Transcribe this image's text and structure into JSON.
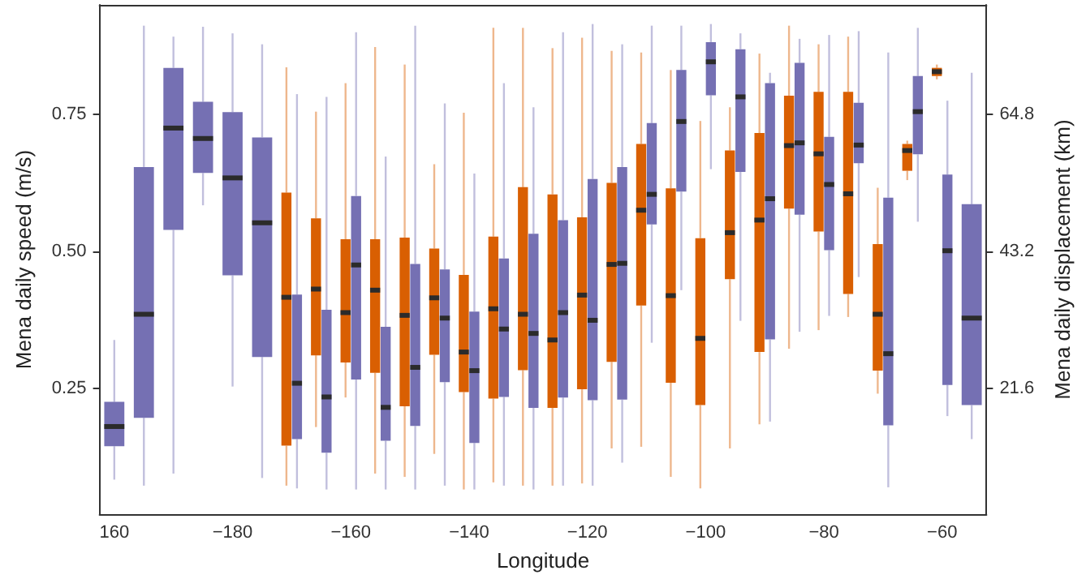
{
  "chart_data": {
    "type": "box",
    "xlabel": "Longitude",
    "ylabel": "Mena daily speed (m/s)",
    "y2label": "Mena daily displacement (km)",
    "categories": [
      "160",
      null,
      null,
      null,
      "−180",
      null,
      null,
      null,
      "−160",
      null,
      null,
      null,
      "−140",
      null,
      null,
      null,
      "−120",
      null,
      null,
      null,
      "−100",
      null,
      null,
      null,
      "−80",
      null,
      null,
      null,
      "−60",
      null
    ],
    "ylim": [
      0.02,
      0.95
    ],
    "yticks": [
      0.25,
      {
        "value": 0.5,
        "label": "0.50"
      },
      0.75
    ],
    "y2lim": [
      1.728,
      82.08
    ],
    "y2ticks": [
      21.6,
      43.2,
      64.8
    ],
    "series": [
      {
        "color": "#d95f02",
        "boxes": [
          null,
          null,
          null,
          null,
          null,
          null,
          {
            "low": 0.072,
            "q1": 0.145,
            "median": 0.416,
            "q3": 0.607,
            "high": 0.836
          },
          {
            "low": 0.179,
            "q1": 0.31,
            "median": 0.431,
            "q3": 0.56,
            "high": 0.755
          },
          {
            "low": 0.233,
            "q1": 0.297,
            "median": 0.388,
            "q3": 0.522,
            "high": 0.807
          },
          {
            "low": 0.094,
            "q1": 0.278,
            "median": 0.429,
            "q3": 0.522,
            "high": 0.873
          },
          {
            "low": 0.088,
            "q1": 0.217,
            "median": 0.383,
            "q3": 0.525,
            "high": 0.841
          },
          {
            "low": 0.13,
            "q1": 0.311,
            "median": 0.415,
            "q3": 0.505,
            "high": 0.659
          },
          {
            "low": 0.065,
            "q1": 0.243,
            "median": 0.316,
            "q3": 0.457,
            "high": 0.753
          },
          {
            "low": 0.078,
            "q1": 0.231,
            "median": 0.395,
            "q3": 0.527,
            "high": 0.908
          },
          {
            "low": 0.072,
            "q1": 0.283,
            "median": 0.385,
            "q3": 0.617,
            "high": 0.908
          },
          {
            "low": 0.072,
            "q1": 0.214,
            "median": 0.338,
            "q3": 0.604,
            "high": 0.871
          },
          {
            "low": 0.076,
            "q1": 0.248,
            "median": 0.42,
            "q3": 0.562,
            "high": 0.89
          },
          {
            "low": 0.14,
            "q1": 0.298,
            "median": 0.476,
            "q3": 0.625,
            "high": 0.866
          },
          {
            "low": 0.143,
            "q1": 0.401,
            "median": 0.575,
            "q3": 0.696,
            "high": 0.863
          },
          {
            "low": 0.088,
            "q1": 0.26,
            "median": 0.419,
            "q3": 0.615,
            "high": 0.831
          },
          {
            "low": 0.067,
            "q1": 0.219,
            "median": 0.341,
            "q3": 0.524,
            "high": 0.738
          },
          {
            "low": 0.14,
            "q1": 0.449,
            "median": 0.534,
            "q3": 0.684,
            "high": 0.763
          },
          {
            "low": 0.184,
            "q1": 0.316,
            "median": 0.557,
            "q3": 0.716,
            "high": 0.861
          },
          {
            "low": 0.322,
            "q1": 0.578,
            "median": 0.693,
            "q3": 0.784,
            "high": 0.912
          },
          {
            "low": 0.356,
            "q1": 0.536,
            "median": 0.678,
            "q3": 0.791,
            "high": 0.878
          },
          {
            "low": 0.38,
            "q1": 0.422,
            "median": 0.605,
            "q3": 0.791,
            "high": 0.892
          },
          {
            "low": 0.24,
            "q1": 0.282,
            "median": 0.385,
            "q3": 0.513,
            "high": 0.616
          },
          {
            "low": 0.63,
            "q1": 0.647,
            "median": 0.684,
            "q3": 0.696,
            "high": 0.702
          },
          {
            "low": 0.814,
            "q1": 0.82,
            "median": 0.828,
            "q3": 0.835,
            "high": 0.841
          },
          null
        ]
      },
      {
        "color": "#7570b3",
        "boxes": [
          {
            "low": 0.083,
            "q1": 0.144,
            "median": 0.18,
            "q3": 0.225,
            "high": 0.338
          },
          {
            "low": 0.072,
            "q1": 0.196,
            "median": 0.385,
            "q3": 0.654,
            "high": 0.912
          },
          {
            "low": 0.094,
            "q1": 0.539,
            "median": 0.725,
            "q3": 0.835,
            "high": 0.892
          },
          {
            "low": 0.584,
            "q1": 0.643,
            "median": 0.706,
            "q3": 0.773,
            "high": 0.91
          },
          {
            "low": 0.253,
            "q1": 0.456,
            "median": 0.634,
            "q3": 0.754,
            "high": 0.898
          },
          {
            "low": 0.086,
            "q1": 0.307,
            "median": 0.552,
            "q3": 0.708,
            "high": 0.878
          },
          {
            "low": 0.067,
            "q1": 0.157,
            "median": 0.259,
            "q3": 0.421,
            "high": 0.787
          },
          {
            "low": 0.065,
            "q1": 0.132,
            "median": 0.234,
            "q3": 0.393,
            "high": 0.782
          },
          {
            "low": 0.065,
            "q1": 0.266,
            "median": 0.475,
            "q3": 0.601,
            "high": 0.9
          },
          {
            "low": 0.065,
            "q1": 0.154,
            "median": 0.215,
            "q3": 0.362,
            "high": 0.673
          },
          {
            "low": 0.065,
            "q1": 0.181,
            "median": 0.288,
            "q3": 0.477,
            "high": 0.912
          },
          {
            "low": 0.072,
            "q1": 0.261,
            "median": 0.378,
            "q3": 0.467,
            "high": 0.77
          },
          {
            "low": 0.065,
            "q1": 0.15,
            "median": 0.282,
            "q3": 0.39,
            "high": 0.642
          },
          {
            "low": 0.072,
            "q1": 0.234,
            "median": 0.358,
            "q3": 0.487,
            "high": 0.807
          },
          {
            "low": 0.065,
            "q1": 0.214,
            "median": 0.35,
            "q3": 0.532,
            "high": 0.763
          },
          {
            "low": 0.072,
            "q1": 0.233,
            "median": 0.388,
            "q3": 0.557,
            "high": 0.9
          },
          {
            "low": 0.072,
            "q1": 0.228,
            "median": 0.374,
            "q3": 0.632,
            "high": 0.915
          },
          {
            "low": 0.114,
            "q1": 0.229,
            "median": 0.478,
            "q3": 0.654,
            "high": 0.878
          },
          {
            "low": 0.333,
            "q1": 0.549,
            "median": 0.604,
            "q3": 0.734,
            "high": 0.912
          },
          {
            "low": 0.429,
            "q1": 0.609,
            "median": 0.737,
            "q3": 0.831,
            "high": 0.912
          },
          {
            "low": 0.65,
            "q1": 0.785,
            "median": 0.846,
            "q3": 0.882,
            "high": 0.915
          },
          {
            "low": 0.373,
            "q1": 0.645,
            "median": 0.782,
            "q3": 0.869,
            "high": 0.898
          },
          {
            "low": 0.189,
            "q1": 0.339,
            "median": 0.596,
            "q3": 0.807,
            "high": 0.826
          },
          {
            "low": 0.353,
            "q1": 0.567,
            "median": 0.698,
            "q3": 0.844,
            "high": 0.888
          },
          {
            "low": 0.382,
            "q1": 0.502,
            "median": 0.622,
            "q3": 0.709,
            "high": 0.895
          },
          {
            "low": 0.453,
            "q1": 0.661,
            "median": 0.694,
            "q3": 0.771,
            "high": 0.902
          },
          {
            "low": 0.069,
            "q1": 0.182,
            "median": 0.313,
            "q3": 0.598,
            "high": 0.863
          },
          {
            "low": 0.554,
            "q1": 0.677,
            "median": 0.755,
            "q3": 0.82,
            "high": 0.908
          },
          {
            "low": 0.199,
            "q1": 0.256,
            "median": 0.501,
            "q3": 0.64,
            "high": 0.775
          },
          {
            "low": 0.157,
            "q1": 0.219,
            "median": 0.378,
            "q3": 0.586,
            "high": 0.826
          }
        ]
      }
    ]
  }
}
